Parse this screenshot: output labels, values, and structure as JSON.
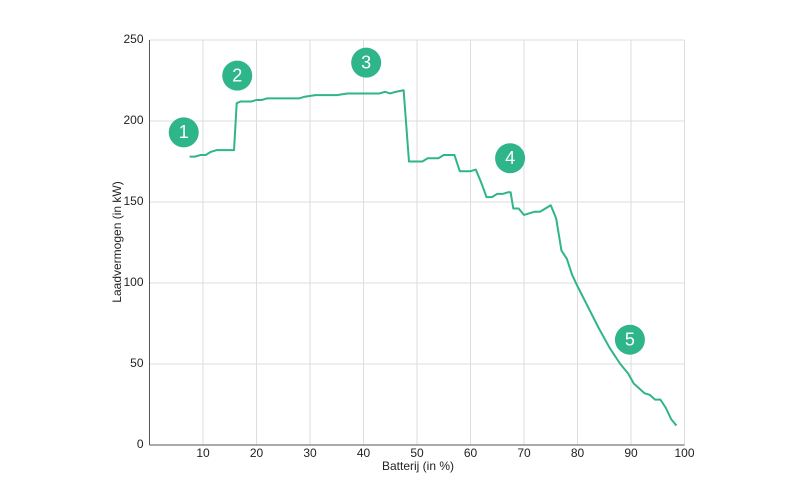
{
  "chart_data": {
    "type": "line",
    "x_label": "Batterij (in %)",
    "y_label": "Laadvermogen (in kW)",
    "xlim": [
      0,
      100
    ],
    "ylim": [
      0,
      250
    ],
    "xticks": [
      10,
      20,
      30,
      40,
      50,
      60,
      70,
      80,
      90,
      100
    ],
    "yticks": [
      0,
      50,
      100,
      150,
      200,
      250
    ],
    "grid": true,
    "series": [
      {
        "color": "#2fb58a",
        "x": [
          7.5,
          8.5,
          9.5,
          10.5,
          11.5,
          12.5,
          14,
          15.8,
          16.3,
          17,
          19,
          20,
          21,
          22,
          25,
          28,
          29,
          31,
          35,
          37,
          43,
          44,
          45,
          46,
          47.5,
          48.5,
          50,
          51,
          52,
          54,
          55,
          57,
          58,
          60,
          61,
          62,
          63,
          64,
          65,
          66,
          67,
          67.5,
          68,
          69,
          70,
          71,
          72,
          73,
          74,
          75,
          76,
          77,
          78,
          79,
          80,
          82,
          84,
          86,
          88,
          89.5,
          90.5,
          91.5,
          92.5,
          93.5,
          94.5,
          95.5,
          96.5,
          97.5,
          98.5
        ],
        "values": [
          178,
          178,
          179,
          179,
          181,
          182,
          182,
          182,
          211,
          212,
          212,
          213,
          213,
          214,
          214,
          214,
          215,
          216,
          216,
          217,
          217,
          218,
          217,
          218,
          219,
          175,
          175,
          175,
          177,
          177,
          179,
          179,
          169,
          169,
          170,
          162,
          153,
          153,
          155,
          155,
          156,
          156,
          146,
          146,
          142,
          143,
          144,
          144,
          146,
          148,
          140,
          120,
          115,
          105,
          98,
          85,
          72,
          60,
          50,
          44,
          38,
          35,
          32,
          31,
          28,
          28,
          23,
          16,
          12
        ]
      }
    ],
    "annotations": [
      {
        "text": "1",
        "x": 6.4,
        "y": 193
      },
      {
        "text": "2",
        "x": 16.4,
        "y": 228
      },
      {
        "text": "3",
        "x": 40.5,
        "y": 236
      },
      {
        "text": "4",
        "x": 67.4,
        "y": 177
      },
      {
        "text": "5",
        "x": 89.8,
        "y": 65
      }
    ]
  }
}
